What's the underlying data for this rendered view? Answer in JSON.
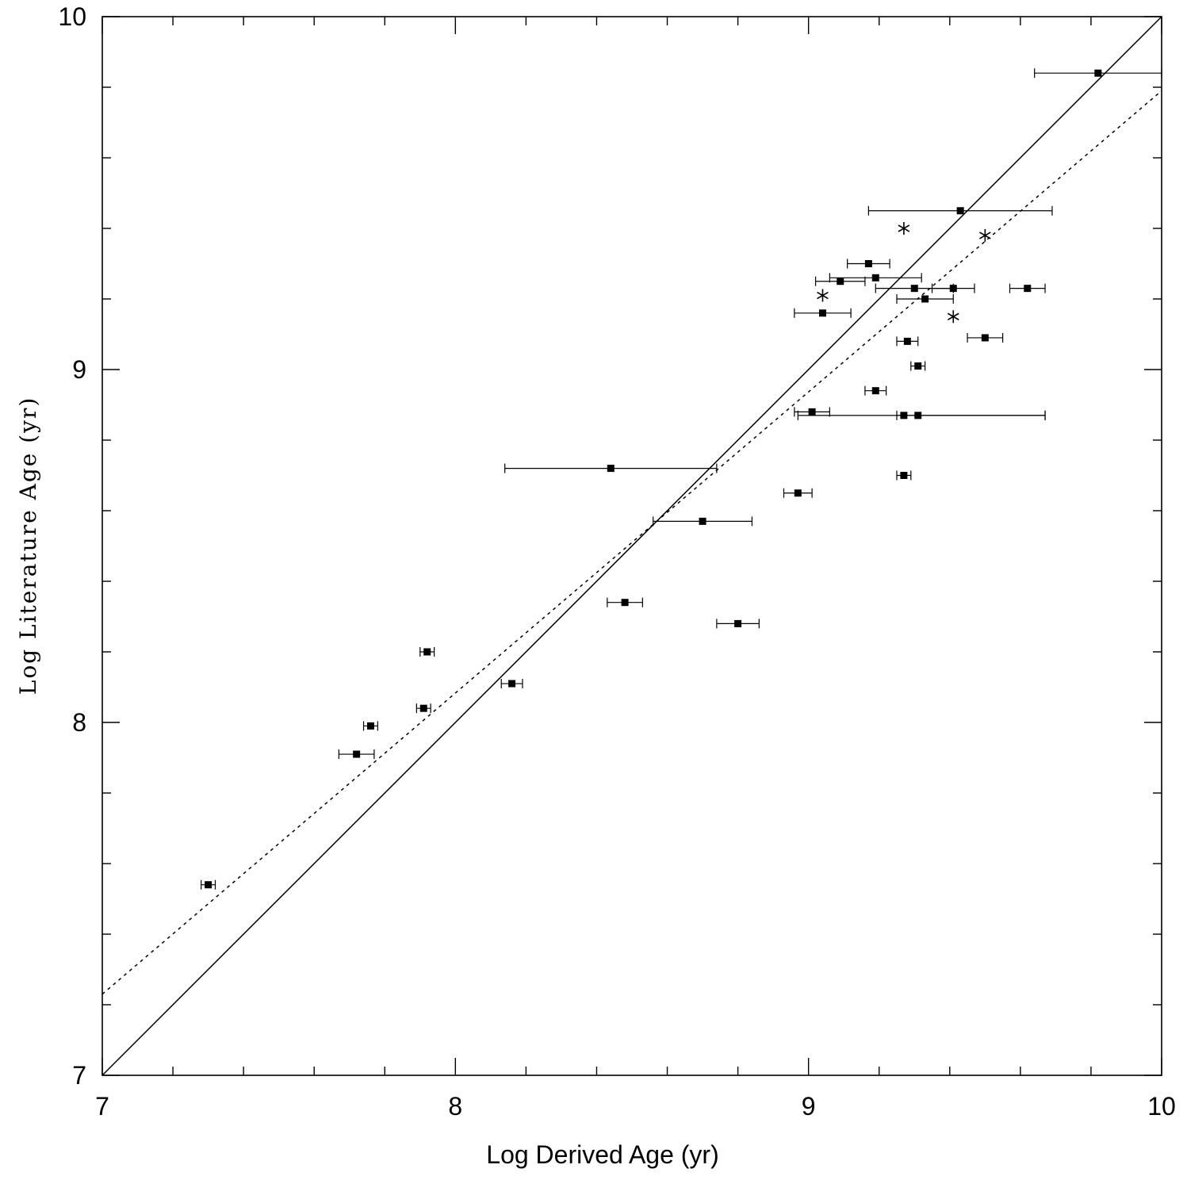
{
  "chart_data": {
    "type": "scatter",
    "title": "",
    "xlabel": "Log Derived Age (yr)",
    "ylabel": "Log Literature Age (yr)",
    "xlim": [
      7,
      10
    ],
    "ylim": [
      7,
      10
    ],
    "xticks": [
      "7",
      "8",
      "9",
      "10"
    ],
    "yticks": [
      "7",
      "8",
      "9",
      "10"
    ],
    "minor_tick_step": 0.2,
    "grid": false,
    "series": [
      {
        "name": "clusters",
        "marker": "square",
        "points": [
          {
            "x": 7.3,
            "y": 7.54,
            "xerr": [
              0.02,
              0.02
            ]
          },
          {
            "x": 7.72,
            "y": 7.91,
            "xerr": [
              0.05,
              0.05
            ]
          },
          {
            "x": 7.76,
            "y": 7.99,
            "xerr": [
              0.02,
              0.02
            ]
          },
          {
            "x": 7.91,
            "y": 8.04,
            "xerr": [
              0.02,
              0.02
            ]
          },
          {
            "x": 7.92,
            "y": 8.2,
            "xerr": [
              0.02,
              0.02
            ]
          },
          {
            "x": 8.16,
            "y": 8.11,
            "xerr": [
              0.03,
              0.03
            ]
          },
          {
            "x": 8.44,
            "y": 8.72,
            "xerr": [
              0.3,
              0.3
            ]
          },
          {
            "x": 8.48,
            "y": 8.34,
            "xerr": [
              0.05,
              0.05
            ]
          },
          {
            "x": 8.7,
            "y": 8.57,
            "xerr": [
              0.14,
              0.14
            ]
          },
          {
            "x": 8.8,
            "y": 8.28,
            "xerr": [
              0.06,
              0.06
            ]
          },
          {
            "x": 8.97,
            "y": 8.65,
            "xerr": [
              0.04,
              0.04
            ]
          },
          {
            "x": 9.01,
            "y": 8.88,
            "xerr": [
              0.05,
              0.05
            ]
          },
          {
            "x": 9.04,
            "y": 9.16,
            "xerr": [
              0.08,
              0.08
            ]
          },
          {
            "x": 9.09,
            "y": 9.25,
            "xerr": [
              0.07,
              0.07
            ]
          },
          {
            "x": 9.17,
            "y": 9.3,
            "xerr": [
              0.06,
              0.06
            ]
          },
          {
            "x": 9.19,
            "y": 9.26,
            "xerr": [
              0.13,
              0.13
            ]
          },
          {
            "x": 9.19,
            "y": 8.94,
            "xerr": [
              0.03,
              0.03
            ]
          },
          {
            "x": 9.27,
            "y": 8.87,
            "xerr": [
              0.3,
              0.4
            ]
          },
          {
            "x": 9.27,
            "y": 8.7,
            "xerr": [
              0.02,
              0.02
            ]
          },
          {
            "x": 9.28,
            "y": 9.08,
            "xerr": [
              0.03,
              0.03
            ]
          },
          {
            "x": 9.3,
            "y": 9.23,
            "xerr": [
              0.11,
              0.11
            ]
          },
          {
            "x": 9.31,
            "y": 9.01,
            "xerr": [
              0.02,
              0.02
            ]
          },
          {
            "x": 9.31,
            "y": 8.87,
            "xerr": [
              0.06,
              0.36
            ]
          },
          {
            "x": 9.33,
            "y": 9.2,
            "xerr": [
              0.08,
              0.08
            ]
          },
          {
            "x": 9.41,
            "y": 9.23,
            "xerr": [
              0.06,
              0.06
            ]
          },
          {
            "x": 9.43,
            "y": 9.45,
            "xerr": [
              0.26,
              0.26
            ]
          },
          {
            "x": 9.5,
            "y": 9.09,
            "xerr": [
              0.05,
              0.05
            ]
          },
          {
            "x": 9.62,
            "y": 9.23,
            "xerr": [
              0.05,
              0.05
            ]
          },
          {
            "x": 9.82,
            "y": 9.84,
            "xerr": [
              0.18,
              0.18
            ]
          }
        ]
      },
      {
        "name": "asterisk points",
        "marker": "asterisk",
        "points": [
          {
            "x": 9.04,
            "y": 9.21
          },
          {
            "x": 9.27,
            "y": 9.4
          },
          {
            "x": 9.41,
            "y": 9.15
          },
          {
            "x": 9.5,
            "y": 9.38
          }
        ]
      }
    ],
    "lines": [
      {
        "name": "one-to-one",
        "style": "solid",
        "x": [
          7,
          10
        ],
        "y": [
          7,
          10
        ]
      },
      {
        "name": "fit",
        "style": "dotted",
        "x": [
          7,
          10
        ],
        "y": [
          7.23,
          9.79
        ]
      }
    ]
  }
}
